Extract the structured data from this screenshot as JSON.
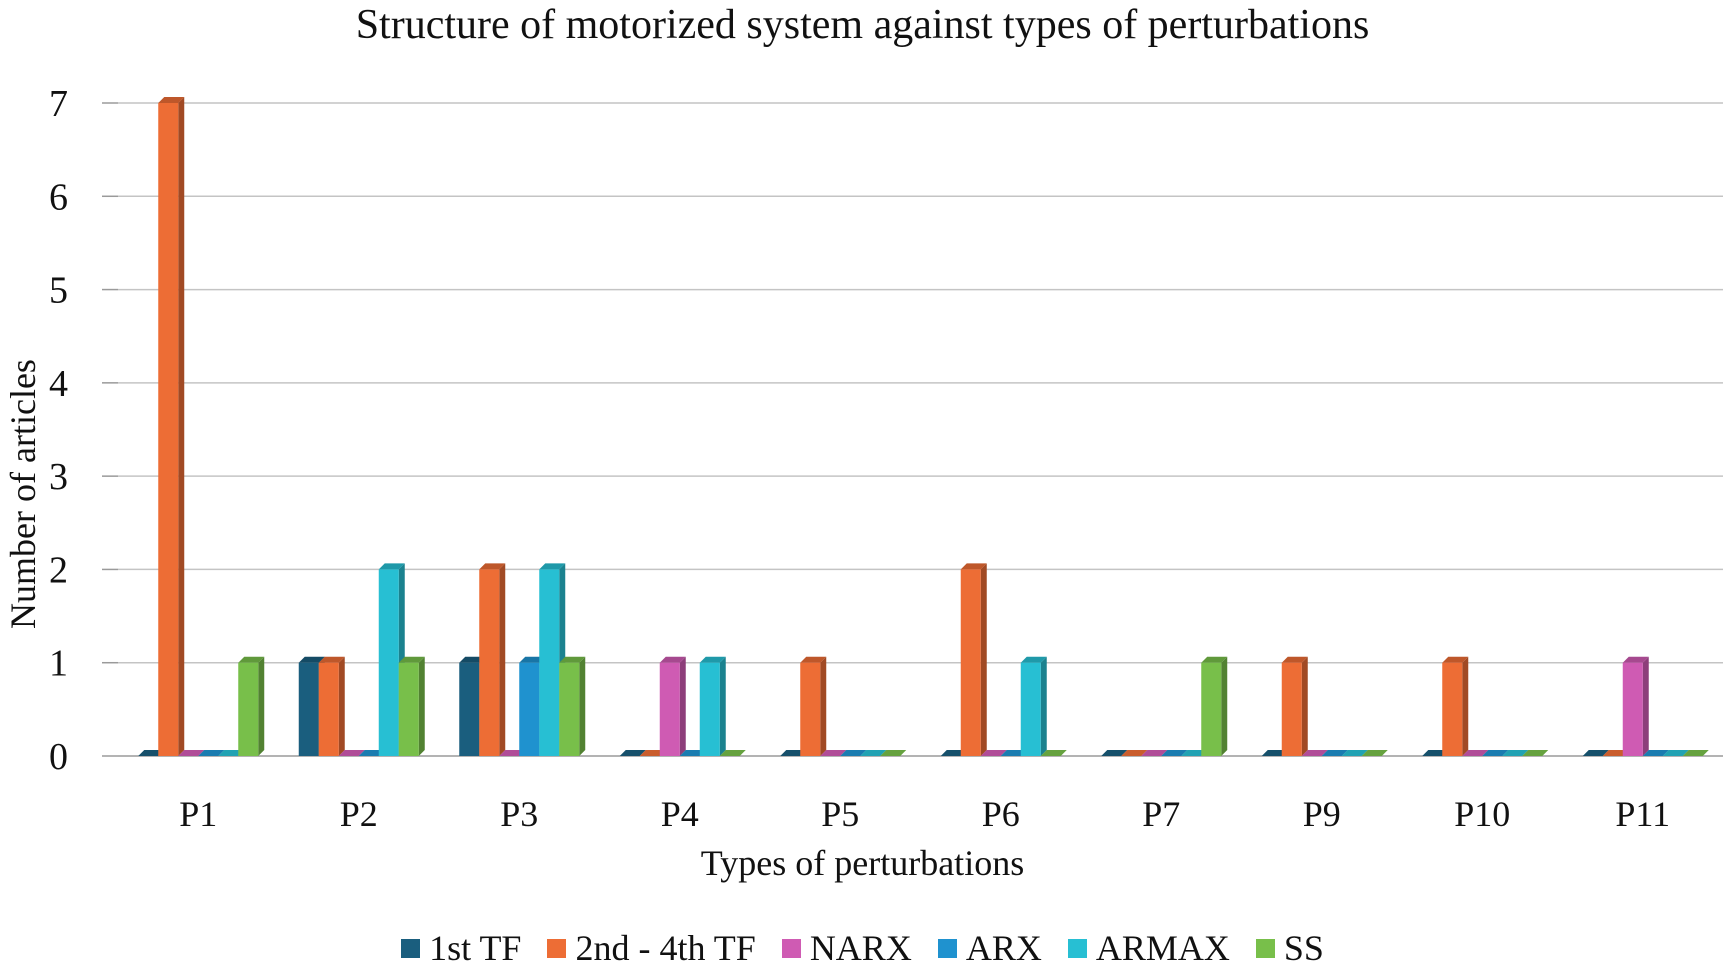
{
  "chart_data": {
    "type": "bar",
    "title": "Structure of motorized system against types of perturbations",
    "xlabel": "Types of perturbations",
    "ylabel": "Number of articles",
    "ylim": [
      0,
      7
    ],
    "yticks": [
      0,
      1,
      2,
      3,
      4,
      5,
      6,
      7
    ],
    "grid": true,
    "legend_position": "bottom",
    "categories": [
      "P1",
      "P2",
      "P3",
      "P4",
      "P5",
      "P6",
      "P7",
      "P9",
      "P10",
      "P11"
    ],
    "series": [
      {
        "name": "1st TF",
        "color": "#1a5e7e",
        "values": [
          0,
          1,
          1,
          0,
          0,
          0,
          0,
          0,
          0,
          0
        ]
      },
      {
        "name": "2nd - 4th TF",
        "color": "#ed6d35",
        "values": [
          7,
          1,
          2,
          0,
          1,
          2,
          0,
          1,
          1,
          0
        ]
      },
      {
        "name": "NARX",
        "color": "#cf5bb3",
        "values": [
          0,
          0,
          0,
          1,
          0,
          0,
          0,
          0,
          0,
          1
        ]
      },
      {
        "name": "ARX",
        "color": "#1f92cf",
        "values": [
          0,
          0,
          1,
          0,
          0,
          0,
          0,
          0,
          0,
          0
        ]
      },
      {
        "name": "ARMAX",
        "color": "#27bfd3",
        "values": [
          0,
          2,
          2,
          1,
          0,
          1,
          0,
          0,
          0,
          0
        ]
      },
      {
        "name": "SS",
        "color": "#78bf4a",
        "values": [
          1,
          1,
          1,
          0,
          0,
          0,
          1,
          0,
          0,
          0
        ]
      }
    ]
  }
}
